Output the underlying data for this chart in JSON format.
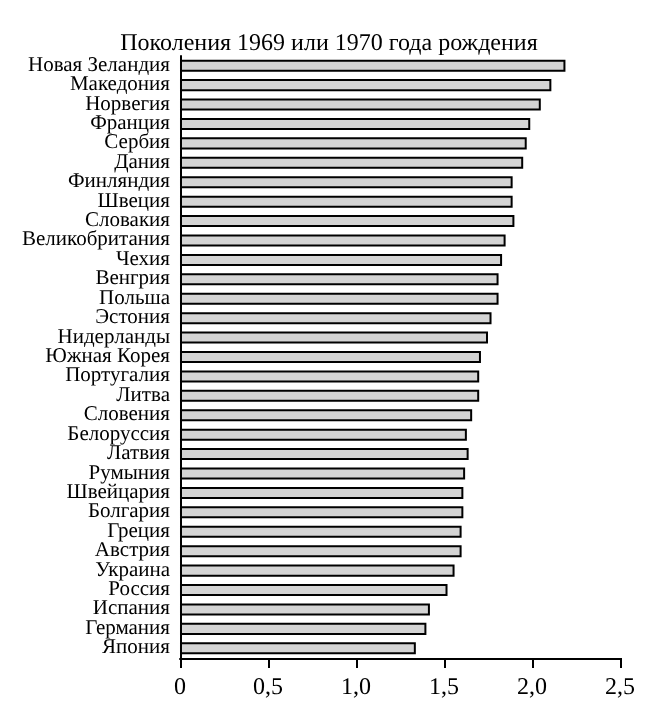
{
  "chart_data": {
    "type": "bar",
    "orientation": "horizontal",
    "title": "Поколения 1969 или 1970 года рождения",
    "categories": [
      "Новая Зеландия",
      "Македония",
      "Норвегия",
      "Франция",
      "Сербия",
      "Дания",
      "Финляндия",
      "Швеция",
      "Словакия",
      "Великобритания",
      "Чехия",
      "Венгрия",
      "Польша",
      "Эстония",
      "Нидерланды",
      "Южная Корея",
      "Португалия",
      "Литва",
      "Словения",
      "Белоруссия",
      "Латвия",
      "Румыния",
      "Швейцария",
      "Болгария",
      "Греция",
      "Австрия",
      "Украина",
      "Россия",
      "Испания",
      "Германия",
      "Япония"
    ],
    "values": [
      2.19,
      2.11,
      2.05,
      1.99,
      1.97,
      1.95,
      1.89,
      1.89,
      1.9,
      1.85,
      1.83,
      1.81,
      1.81,
      1.77,
      1.75,
      1.71,
      1.7,
      1.7,
      1.66,
      1.63,
      1.64,
      1.62,
      1.61,
      1.61,
      1.6,
      1.6,
      1.56,
      1.52,
      1.42,
      1.4,
      1.34
    ],
    "color": "#d4d4d4",
    "xlim": [
      0,
      2.5
    ],
    "xticks": [
      0,
      {
        "value": 0.5,
        "label": "0,5"
      },
      {
        "value": 1,
        "label": "1,0"
      },
      {
        "value": 1.5,
        "label": "1,5"
      },
      {
        "value": 2,
        "label": "2,0"
      },
      {
        "value": 2.5,
        "label": "2,5"
      }
    ],
    "grid": false
  }
}
